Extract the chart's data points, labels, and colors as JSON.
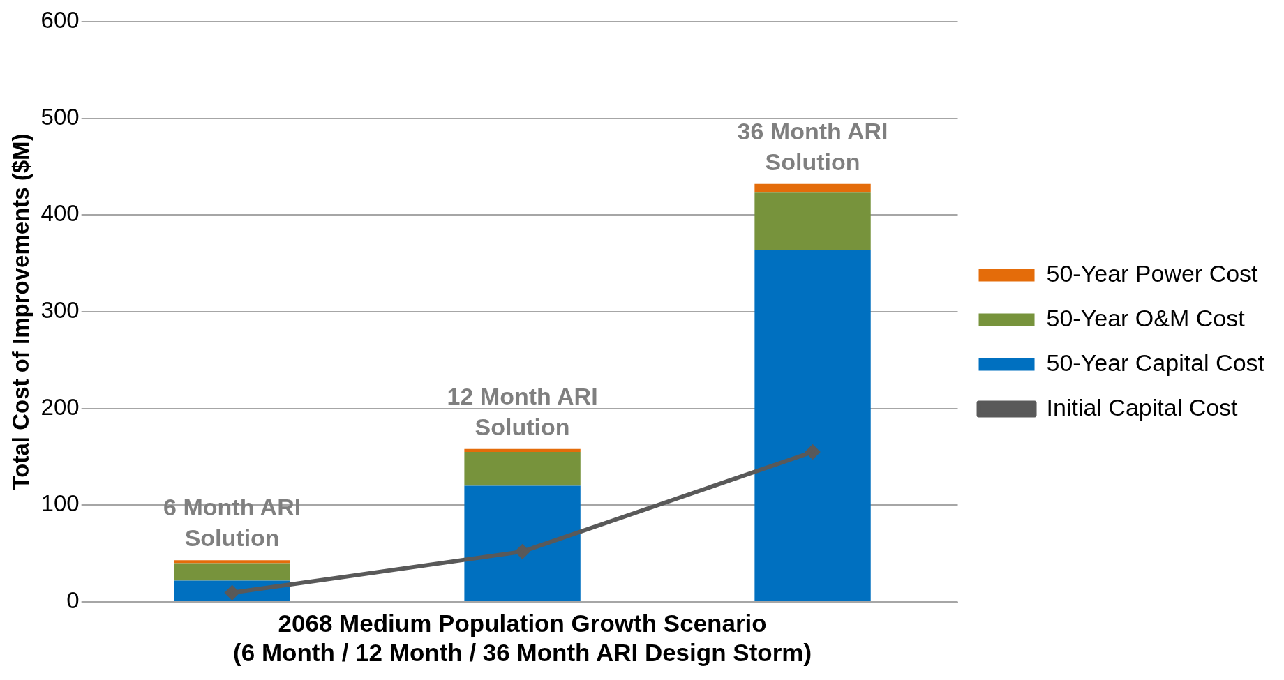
{
  "chart_data": {
    "type": "bar",
    "stacked": true,
    "xlabel": "2068 Medium Population Growth Scenario\n(6 Month / 12 Month / 36 Month ARI Design Storm)",
    "ylabel": "Total Cost of Improvements ($M)",
    "categories": [
      "6 Month ARI\nSolution",
      "12 Month ARI\nSolution",
      "36 Month ARI\nSolution"
    ],
    "series": [
      {
        "name": "50-Year Capital Cost",
        "color": "#0070c0",
        "values": [
          22,
          120,
          364
        ]
      },
      {
        "name": "50-Year O&M Cost",
        "color": "#77933c",
        "values": [
          18,
          35,
          59
        ]
      },
      {
        "name": "50-Year Power Cost",
        "color": "#e46c0a",
        "values": [
          3,
          3,
          9
        ]
      },
      {
        "name": "Initial Capital Cost",
        "type": "line",
        "color": "#595959",
        "values": [
          9.5,
          52,
          155
        ],
        "marker": "diamond"
      }
    ],
    "ylim": [
      0,
      600
    ],
    "yticks": [
      0,
      100,
      200,
      300,
      400,
      500,
      600
    ],
    "grid": "y",
    "legend": "right"
  }
}
